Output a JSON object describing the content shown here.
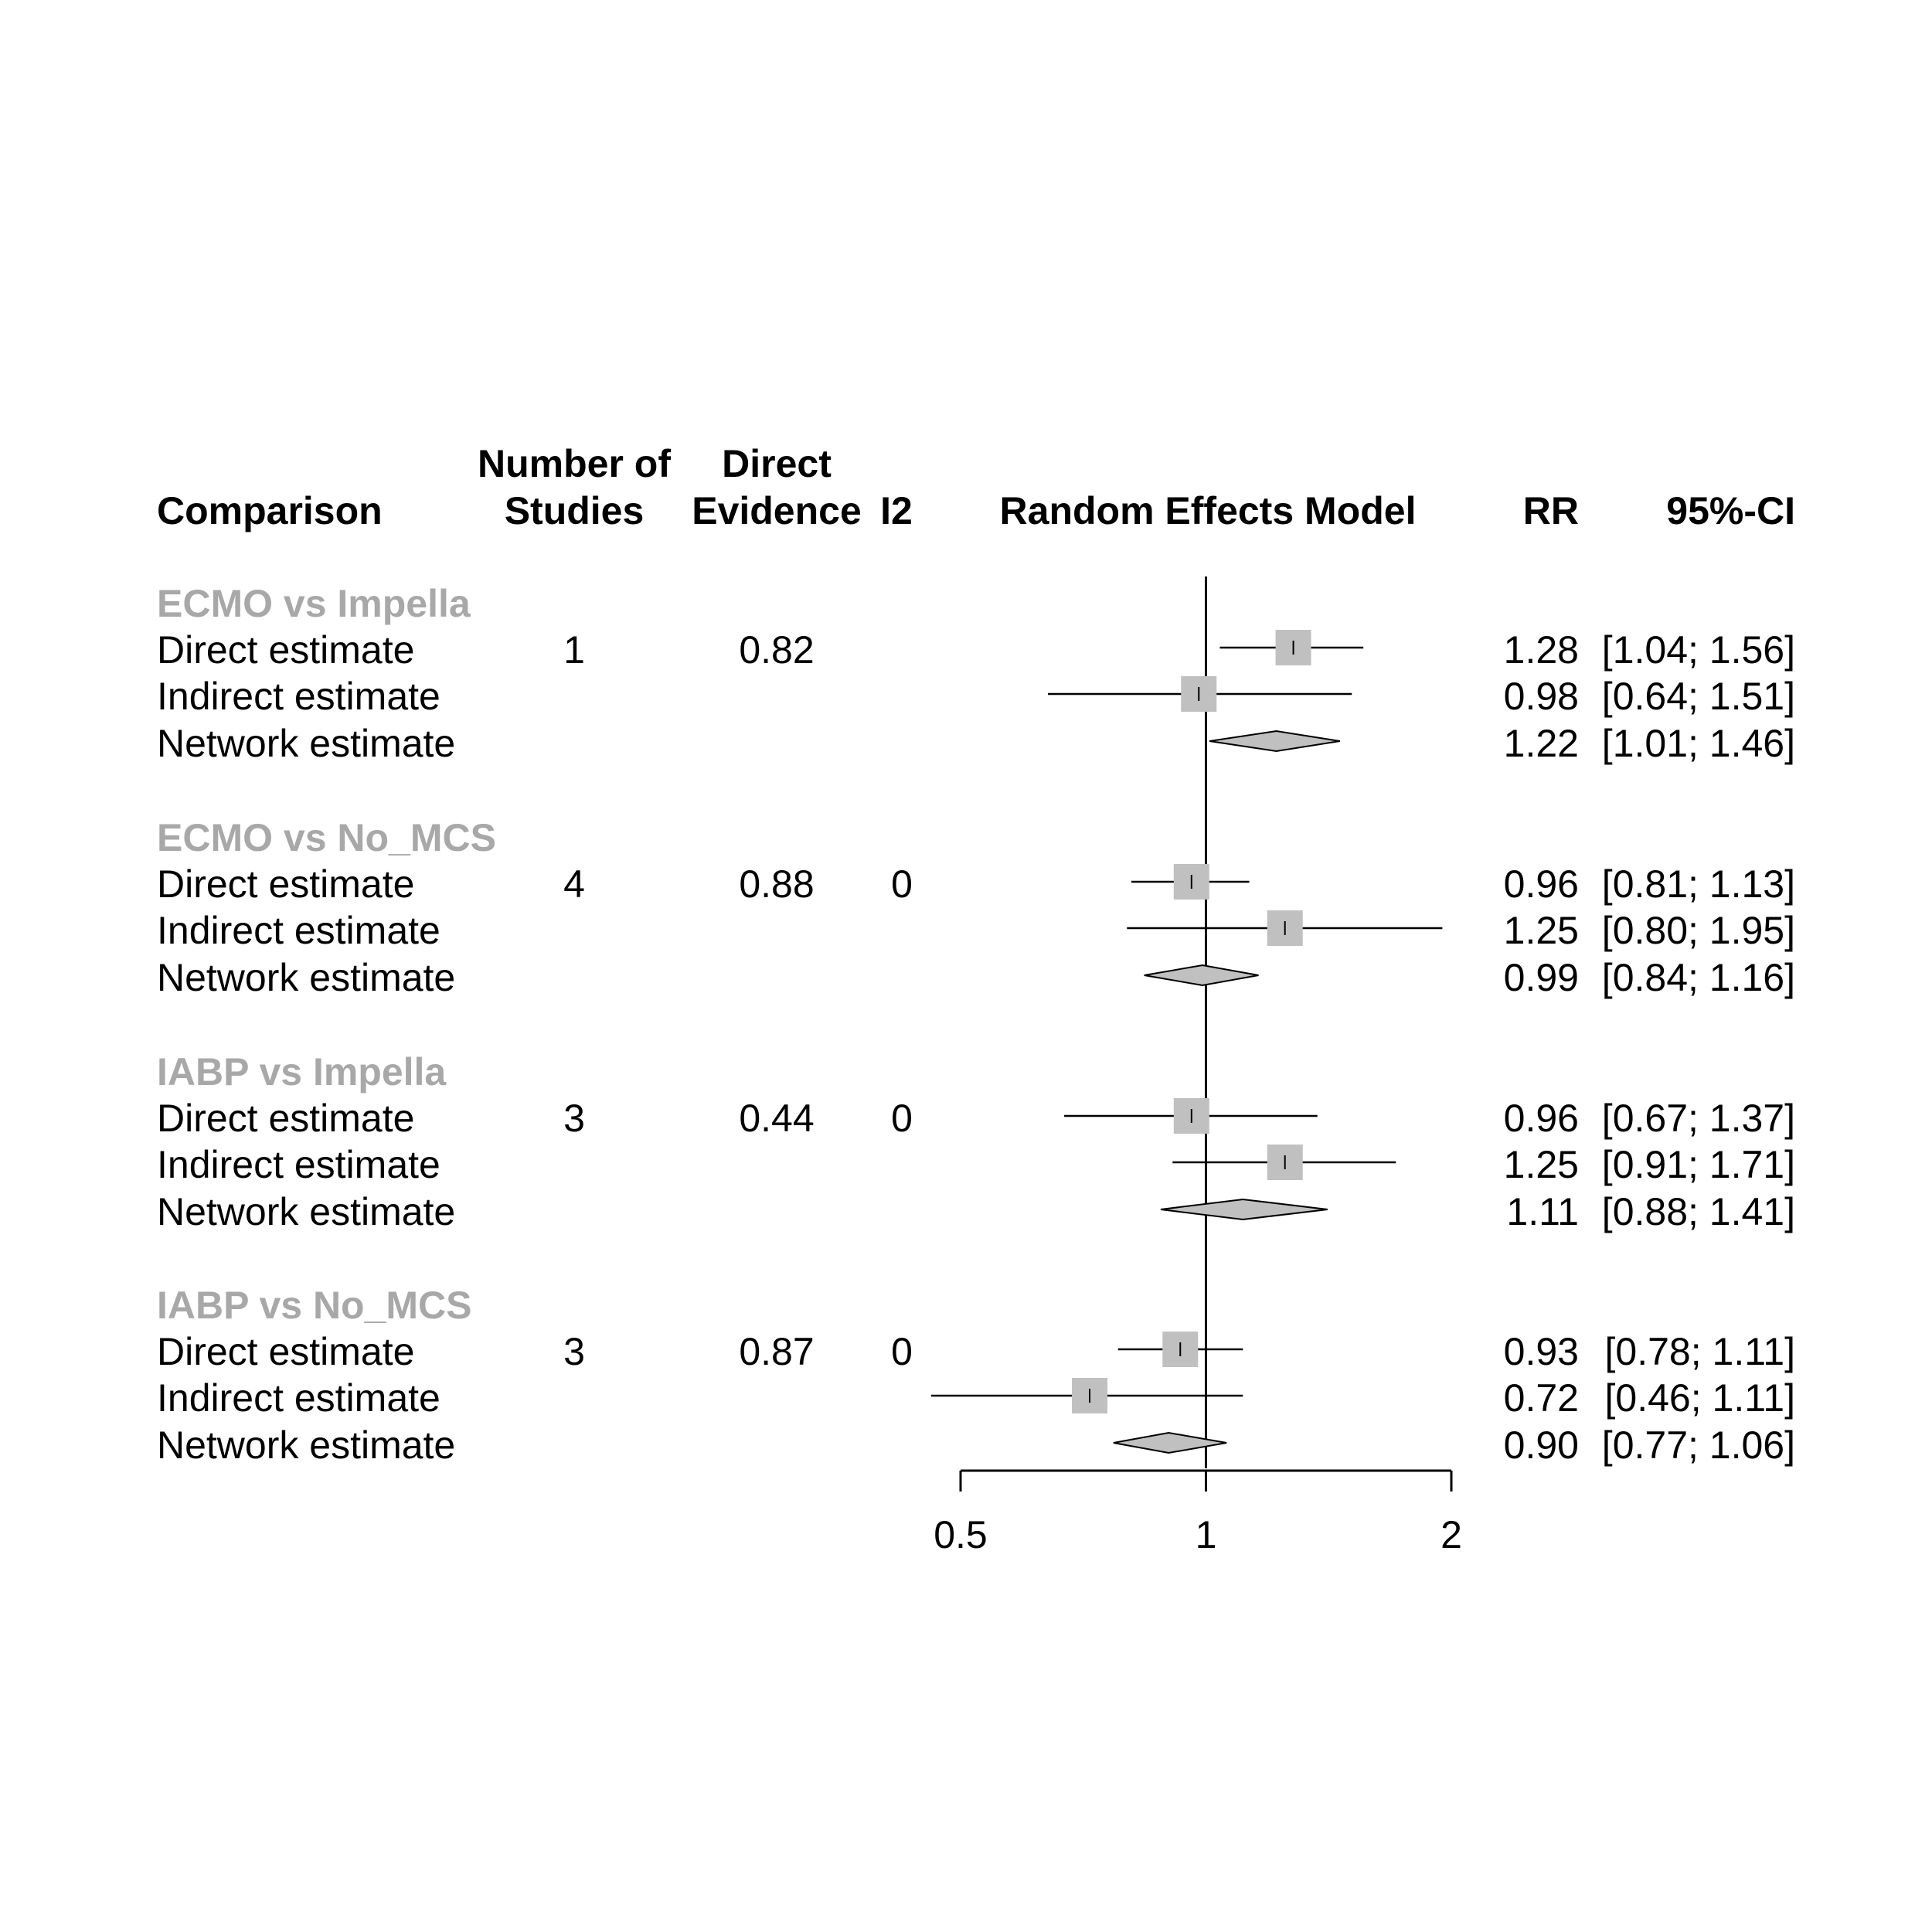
{
  "headers": {
    "comparison": "Comparison",
    "studies_line1": "Number of",
    "studies_line2": "Studies",
    "evidence_line1": "Direct",
    "evidence_line2": "Evidence",
    "i2": "I2",
    "model": "Random Effects Model",
    "rr": "RR",
    "ci": "95%-CI"
  },
  "groups": [
    {
      "label": "ECMO vs Impella",
      "rows": [
        {
          "label": "Direct estimate",
          "studies": "1",
          "evidence": "0.82",
          "i2": "",
          "rr_text": "1.28",
          "ci_text": "[1.04; 1.56]"
        },
        {
          "label": "Indirect estimate",
          "studies": "",
          "evidence": "",
          "i2": "",
          "rr_text": "0.98",
          "ci_text": "[0.64; 1.51]"
        },
        {
          "label": "Network estimate",
          "studies": "",
          "evidence": "",
          "i2": "",
          "rr_text": "1.22",
          "ci_text": "[1.01; 1.46]"
        }
      ]
    },
    {
      "label": "ECMO vs No_MCS",
      "rows": [
        {
          "label": "Direct estimate",
          "studies": "4",
          "evidence": "0.88",
          "i2": "0",
          "rr_text": "0.96",
          "ci_text": "[0.81; 1.13]"
        },
        {
          "label": "Indirect estimate",
          "studies": "",
          "evidence": "",
          "i2": "",
          "rr_text": "1.25",
          "ci_text": "[0.80; 1.95]"
        },
        {
          "label": "Network estimate",
          "studies": "",
          "evidence": "",
          "i2": "",
          "rr_text": "0.99",
          "ci_text": "[0.84; 1.16]"
        }
      ]
    },
    {
      "label": "IABP vs Impella",
      "rows": [
        {
          "label": "Direct estimate",
          "studies": "3",
          "evidence": "0.44",
          "i2": "0",
          "rr_text": "0.96",
          "ci_text": "[0.67; 1.37]"
        },
        {
          "label": "Indirect estimate",
          "studies": "",
          "evidence": "",
          "i2": "",
          "rr_text": "1.25",
          "ci_text": "[0.91; 1.71]"
        },
        {
          "label": "Network estimate",
          "studies": "",
          "evidence": "",
          "i2": "",
          "rr_text": "1.11",
          "ci_text": "[0.88; 1.41]"
        }
      ]
    },
    {
      "label": "IABP vs No_MCS",
      "rows": [
        {
          "label": "Direct estimate",
          "studies": "3",
          "evidence": "0.87",
          "i2": "0",
          "rr_text": "0.93",
          "ci_text": "[0.78; 1.11]"
        },
        {
          "label": "Indirect estimate",
          "studies": "",
          "evidence": "",
          "i2": "",
          "rr_text": "0.72",
          "ci_text": "[0.46; 1.11]"
        },
        {
          "label": "Network estimate",
          "studies": "",
          "evidence": "",
          "i2": "",
          "rr_text": "0.90",
          "ci_text": "[0.77; 1.06]"
        }
      ]
    }
  ],
  "chart_data": {
    "type": "forest",
    "title": "Random Effects Model",
    "xlabel": "",
    "xscale": "log",
    "xlim": [
      0.5,
      2
    ],
    "xticks": [
      "0.5",
      "1",
      "2"
    ],
    "reference_line": 1,
    "colors": {
      "square_fill": "#c0c0c0",
      "diamond_fill": "#c0c0c0",
      "group_label": "#a8a8a8",
      "line": "#000000"
    },
    "estimates": [
      {
        "group": "ECMO vs Impella",
        "kind": "direct",
        "rr": 1.28,
        "lower": 1.04,
        "upper": 1.56
      },
      {
        "group": "ECMO vs Impella",
        "kind": "indirect",
        "rr": 0.98,
        "lower": 0.64,
        "upper": 1.51
      },
      {
        "group": "ECMO vs Impella",
        "kind": "network",
        "rr": 1.22,
        "lower": 1.01,
        "upper": 1.46
      },
      {
        "group": "ECMO vs No_MCS",
        "kind": "direct",
        "rr": 0.96,
        "lower": 0.81,
        "upper": 1.13
      },
      {
        "group": "ECMO vs No_MCS",
        "kind": "indirect",
        "rr": 1.25,
        "lower": 0.8,
        "upper": 1.95
      },
      {
        "group": "ECMO vs No_MCS",
        "kind": "network",
        "rr": 0.99,
        "lower": 0.84,
        "upper": 1.16
      },
      {
        "group": "IABP vs Impella",
        "kind": "direct",
        "rr": 0.96,
        "lower": 0.67,
        "upper": 1.37
      },
      {
        "group": "IABP vs Impella",
        "kind": "indirect",
        "rr": 1.25,
        "lower": 0.91,
        "upper": 1.71
      },
      {
        "group": "IABP vs Impella",
        "kind": "network",
        "rr": 1.11,
        "lower": 0.88,
        "upper": 1.41
      },
      {
        "group": "IABP vs No_MCS",
        "kind": "direct",
        "rr": 0.93,
        "lower": 0.78,
        "upper": 1.11
      },
      {
        "group": "IABP vs No_MCS",
        "kind": "indirect",
        "rr": 0.72,
        "lower": 0.46,
        "upper": 1.11
      },
      {
        "group": "IABP vs No_MCS",
        "kind": "network",
        "rr": 0.9,
        "lower": 0.77,
        "upper": 1.06
      }
    ]
  }
}
